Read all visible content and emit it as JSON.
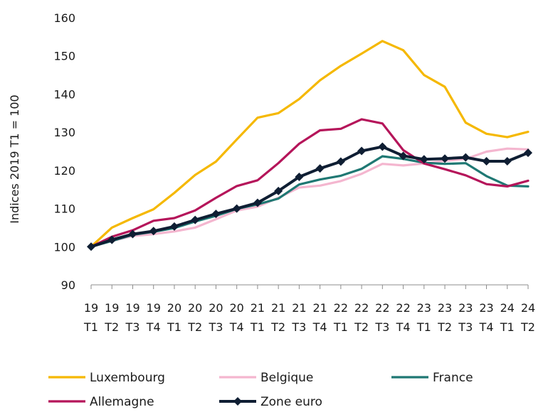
{
  "chart_data": {
    "type": "line",
    "title": "",
    "xlabel": "",
    "ylabel": "Indices 2019 T1 = 100",
    "ylim": [
      90,
      160
    ],
    "yticks": [
      90,
      100,
      110,
      120,
      130,
      140,
      150,
      160
    ],
    "grid": false,
    "legend_position": "bottom",
    "categories": [
      [
        "19",
        "T1"
      ],
      [
        "19",
        "T2"
      ],
      [
        "19",
        "T3"
      ],
      [
        "19",
        "T4"
      ],
      [
        "20",
        "T1"
      ],
      [
        "20",
        "T2"
      ],
      [
        "20",
        "T3"
      ],
      [
        "20",
        "T4"
      ],
      [
        "21",
        "T1"
      ],
      [
        "21",
        "T2"
      ],
      [
        "21",
        "T3"
      ],
      [
        "21",
        "T4"
      ],
      [
        "22",
        "T1"
      ],
      [
        "22",
        "T2"
      ],
      [
        "22",
        "T3"
      ],
      [
        "22",
        "T4"
      ],
      [
        "23",
        "T1"
      ],
      [
        "23",
        "T2"
      ],
      [
        "23",
        "T3"
      ],
      [
        "23",
        "T4"
      ],
      [
        "24",
        "T1"
      ],
      [
        "24",
        "T2"
      ]
    ],
    "series": [
      {
        "name": "Luxembourg",
        "color": "#f5b800",
        "markers": false,
        "values": [
          100,
          105.0,
          107.5,
          109.8,
          114.1,
          118.8,
          122.3,
          128.1,
          133.8,
          135.0,
          138.7,
          143.6,
          147.4,
          150.6,
          153.9,
          151.5,
          145.0,
          141.9,
          132.5,
          129.6,
          128.7,
          130.1
        ]
      },
      {
        "name": "Belgique",
        "color": "#f4b6cf",
        "markers": false,
        "values": [
          100,
          101.5,
          102.8,
          103.3,
          104.0,
          105.0,
          107.2,
          109.5,
          110.5,
          112.8,
          115.5,
          116.0,
          117.2,
          119.1,
          121.7,
          121.3,
          121.8,
          122.5,
          123.0,
          124.9,
          125.7,
          125.5
        ]
      },
      {
        "name": "France",
        "color": "#1f7873",
        "markers": false,
        "values": [
          100,
          101.5,
          103.1,
          103.9,
          104.9,
          106.6,
          108.1,
          109.9,
          111.1,
          112.6,
          116.3,
          117.6,
          118.6,
          120.4,
          123.7,
          123.0,
          122.0,
          121.7,
          121.9,
          118.5,
          116.0,
          115.8
        ]
      },
      {
        "name": "Allemagne",
        "color": "#b5155a",
        "markers": false,
        "values": [
          100,
          102.6,
          104.3,
          106.8,
          107.5,
          109.5,
          112.8,
          115.9,
          117.4,
          121.9,
          127.0,
          130.5,
          130.9,
          133.4,
          132.3,
          125.3,
          121.8,
          120.3,
          118.7,
          116.4,
          115.8,
          117.3
        ]
      },
      {
        "name": "Zone euro",
        "color": "#0f1e33",
        "markers": true,
        "values": [
          100,
          101.8,
          103.3,
          104.1,
          105.3,
          107.0,
          108.6,
          110.0,
          111.5,
          114.6,
          118.3,
          120.5,
          122.3,
          125.1,
          126.2,
          123.8,
          122.9,
          123.1,
          123.4,
          122.4,
          122.4,
          124.6
        ]
      }
    ]
  }
}
